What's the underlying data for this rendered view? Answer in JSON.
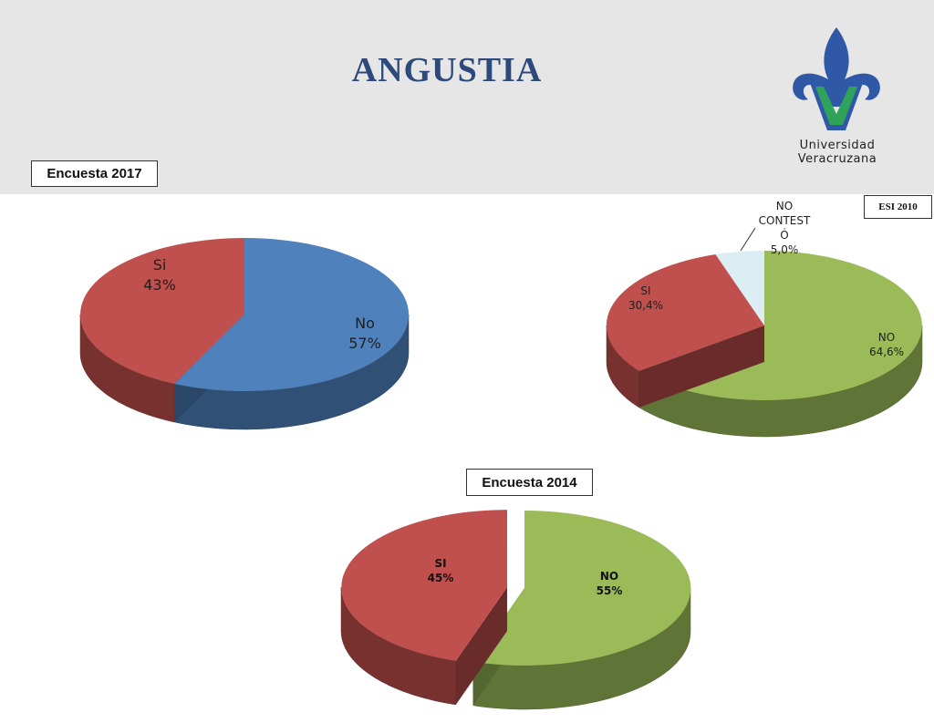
{
  "title": "ANGUSTIA",
  "logo": {
    "icon": "fleur-de-lis-v-icon",
    "text": "Universidad Veracruzana"
  },
  "colors": {
    "title": "#2e4a7d",
    "si": "#c0504d",
    "no_blue": "#4f81bd",
    "no_green": "#9bbb59",
    "no_contesto": "#dbeef4"
  },
  "chart_data": [
    {
      "type": "pie",
      "title": "Encuesta  2017",
      "slices": [
        {
          "label": "Si",
          "value": 43,
          "display": "43%",
          "color": "#c0504d"
        },
        {
          "label": "No",
          "value": 57,
          "display": "57%",
          "color": "#4f81bd"
        }
      ]
    },
    {
      "type": "pie",
      "title": "ESI 2010",
      "slices": [
        {
          "label": "NO",
          "value": 64.6,
          "display": "64,6%",
          "color": "#9bbb59"
        },
        {
          "label": "SI",
          "value": 30.4,
          "display": "30,4%",
          "color": "#c0504d"
        },
        {
          "label": "NO CONTEST Ó",
          "label_lines": [
            "NO",
            "CONTEST",
            "Ó"
          ],
          "value": 5.0,
          "display": "5,0%",
          "color": "#dbeef4"
        }
      ]
    },
    {
      "type": "pie",
      "title": "Encuesta  2014",
      "slices": [
        {
          "label": "NO",
          "value": 55,
          "display": "55%",
          "color": "#9bbb59"
        },
        {
          "label": "SI",
          "value": 45,
          "display": "45%",
          "color": "#c0504d"
        }
      ]
    }
  ]
}
